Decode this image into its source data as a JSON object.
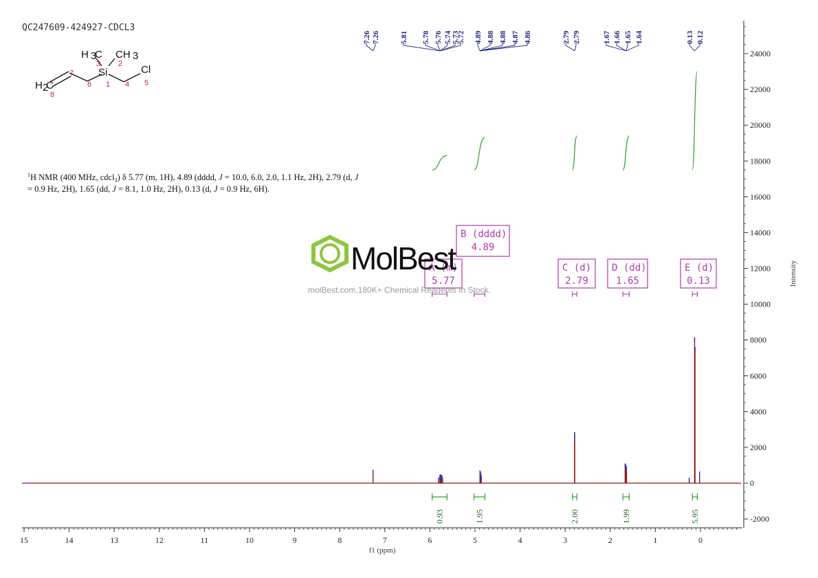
{
  "sample_id": "QC247609-424927-CDCL3",
  "nmr_line1_parts": [
    "1",
    "H NMR (400 MHz, cdcl",
    "3",
    ") δ 5.77 (m, 1H), 4.89 (dddd, ",
    "J",
    " = 10.0, 6.0, 2.0, 1.1 Hz, 2H), 2.79 (d, ",
    "J"
  ],
  "nmr_line2_parts": [
    "= 0.9 Hz, 2H), 1.65 (dd, ",
    "J",
    " = 8.1, 1.0 Hz, 2H), 0.13 (d, ",
    "J",
    " = 0.9 Hz, 6H)."
  ],
  "structure": {
    "atoms": [
      "H",
      "3",
      "C",
      "CH",
      "3",
      "Si",
      "Cl",
      "H",
      "2",
      "C"
    ],
    "numbers": [
      "3",
      "2",
      "7",
      "6",
      "1",
      "4",
      "5",
      "8"
    ]
  },
  "watermark": {
    "brand": "MolBest",
    "tagline": "molBest.com,180K+ Chemical Reagents In Stock.",
    "color": "#8cc63f"
  },
  "colors": {
    "spectrum": "#8b1a1a",
    "peak_label": "#1a237e",
    "integral": "#2e9e2e",
    "multiplet": "#b03aa8"
  },
  "chart_data": {
    "type": "line",
    "xlabel": "f1 (ppm)",
    "ylabel": "Intensity",
    "xlim": [
      15,
      -0.9
    ],
    "ylim": [
      -2500,
      26000
    ],
    "x_reversed": true,
    "x_ticks": [
      "15",
      "14",
      "13",
      "12",
      "11",
      "10",
      "9",
      "8",
      "7",
      "6",
      "5",
      "4",
      "3",
      "2",
      "1",
      "0"
    ],
    "y_ticks": [
      "24000",
      "22000",
      "20000",
      "18000",
      "16000",
      "14000",
      "12000",
      "10000",
      "8000",
      "6000",
      "4000",
      "2000",
      "0",
      "-2000"
    ],
    "series": [
      {
        "x": [
          7.26,
          5.81,
          5.78,
          5.76,
          5.74,
          5.73,
          5.72,
          4.89,
          4.88,
          4.88,
          4.87,
          4.86,
          2.79,
          2.79,
          1.67,
          1.66,
          1.65,
          1.64,
          0.13,
          0.12,
          0.25,
          0.02
        ],
        "y": [
          750,
          300,
          450,
          500,
          450,
          400,
          300,
          700,
          650,
          600,
          550,
          400,
          2850,
          2700,
          1100,
          1050,
          1000,
          900,
          8150,
          7600,
          300,
          650
        ]
      }
    ],
    "peak_labels": [
      "7.26",
      "7.26",
      "5.81",
      "5.78",
      "5.76",
      "5.74",
      "5.73",
      "5.72",
      "4.89",
      "4.88",
      "4.88",
      "4.87",
      "4.86",
      "2.79",
      "2.79",
      "1.67",
      "1.66",
      "1.65",
      "1.64",
      "0.13",
      "0.12"
    ],
    "integrals": [
      {
        "range": [
          5.95,
          5.62
        ],
        "value": "0.93",
        "curve_y": [
          17500,
          18300
        ]
      },
      {
        "range": [
          5.02,
          4.78
        ],
        "value": "1.95",
        "curve_y": [
          17500,
          19300
        ]
      },
      {
        "range": [
          2.84,
          2.74
        ],
        "value": "2.00",
        "curve_y": [
          17500,
          19400
        ]
      },
      {
        "range": [
          1.72,
          1.58
        ],
        "value": "1.99",
        "curve_y": [
          17500,
          19400
        ]
      },
      {
        "range": [
          0.18,
          0.07
        ],
        "value": "5.95",
        "curve_y": [
          17500,
          23000
        ]
      }
    ],
    "multiplets": [
      {
        "label": "A (m)",
        "shift": "5.77",
        "range": [
          5.95,
          5.62
        ]
      },
      {
        "label": "B (dddd)",
        "shift": "4.89",
        "range": [
          5.02,
          4.78
        ]
      },
      {
        "label": "C (d)",
        "shift": "2.79",
        "range": [
          2.84,
          2.74
        ]
      },
      {
        "label": "D (dd)",
        "shift": "1.65",
        "range": [
          1.72,
          1.58
        ]
      },
      {
        "label": "E (d)",
        "shift": "0.13",
        "range": [
          0.18,
          0.07
        ]
      }
    ]
  }
}
